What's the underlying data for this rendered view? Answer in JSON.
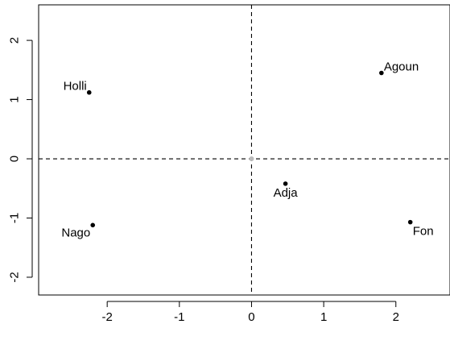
{
  "chart_data": {
    "type": "scatter",
    "title": "",
    "xlabel": "",
    "ylabel": "",
    "xlim": [
      -2.95,
      2.75
    ],
    "ylim": [
      -2.3,
      2.6
    ],
    "x_ticks": [
      -2,
      -1,
      0,
      1,
      2
    ],
    "y_ticks": [
      -2,
      -1,
      0,
      1,
      2
    ],
    "x_tick_labels": [
      "-2",
      "-1",
      "0",
      "1",
      "2"
    ],
    "y_tick_labels": [
      "-2",
      "-1",
      "0",
      "1",
      "2"
    ],
    "reference_lines": {
      "horizontal_y": 0,
      "vertical_x": 0,
      "style": "dashed"
    },
    "origin_marker": true,
    "grid": false,
    "legend": "none",
    "points": [
      {
        "label": "Agoun",
        "x": 1.8,
        "y": 1.45,
        "label_position": "top-right"
      },
      {
        "label": "Holli",
        "x": -2.25,
        "y": 1.12,
        "label_position": "top-left"
      },
      {
        "label": "Adja",
        "x": 0.47,
        "y": -0.42,
        "label_position": "below"
      },
      {
        "label": "Fon",
        "x": 2.2,
        "y": -1.07,
        "label_position": "bottom-right"
      },
      {
        "label": "Nago",
        "x": -2.2,
        "y": -1.12,
        "label_position": "bottom-left"
      }
    ],
    "colors": {
      "point": "#000000",
      "axis": "#000000",
      "reference_line": "#000000",
      "origin_marker": "#bbbbbb",
      "text": "#000000"
    }
  }
}
